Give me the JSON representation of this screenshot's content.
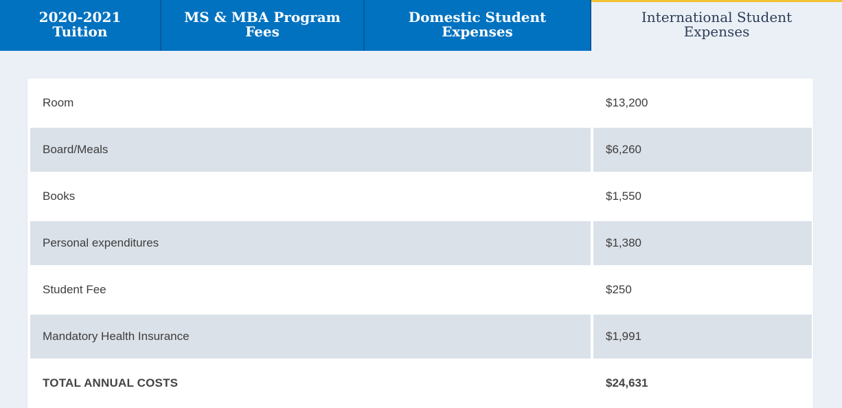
{
  "tabs": [
    {
      "label": "2020-2021\nTuition",
      "active": false
    },
    {
      "label": "MS & MBA Program\nFees",
      "active": false
    },
    {
      "label": "Domestic Student\nExpenses",
      "active": false
    },
    {
      "label": "International Student\nExpenses",
      "active": true
    }
  ],
  "expenses": {
    "rows": [
      {
        "label": "Room",
        "amount": "$13,200"
      },
      {
        "label": "Board/Meals",
        "amount": "$6,260"
      },
      {
        "label": "Books",
        "amount": "$1,550"
      },
      {
        "label": "Personal expenditures",
        "amount": "$1,380"
      },
      {
        "label": "Student Fee",
        "amount": "$250"
      },
      {
        "label": "Mandatory Health Insurance",
        "amount": "$1,991"
      }
    ],
    "total": {
      "label": "TOTAL ANNUAL COSTS",
      "amount": "$24,631"
    }
  },
  "colors": {
    "tab_blue": "#0072c0",
    "active_tab_accent": "#f2c230",
    "page_background": "#ebf0f7",
    "shaded_row": "#dbe1e9"
  }
}
